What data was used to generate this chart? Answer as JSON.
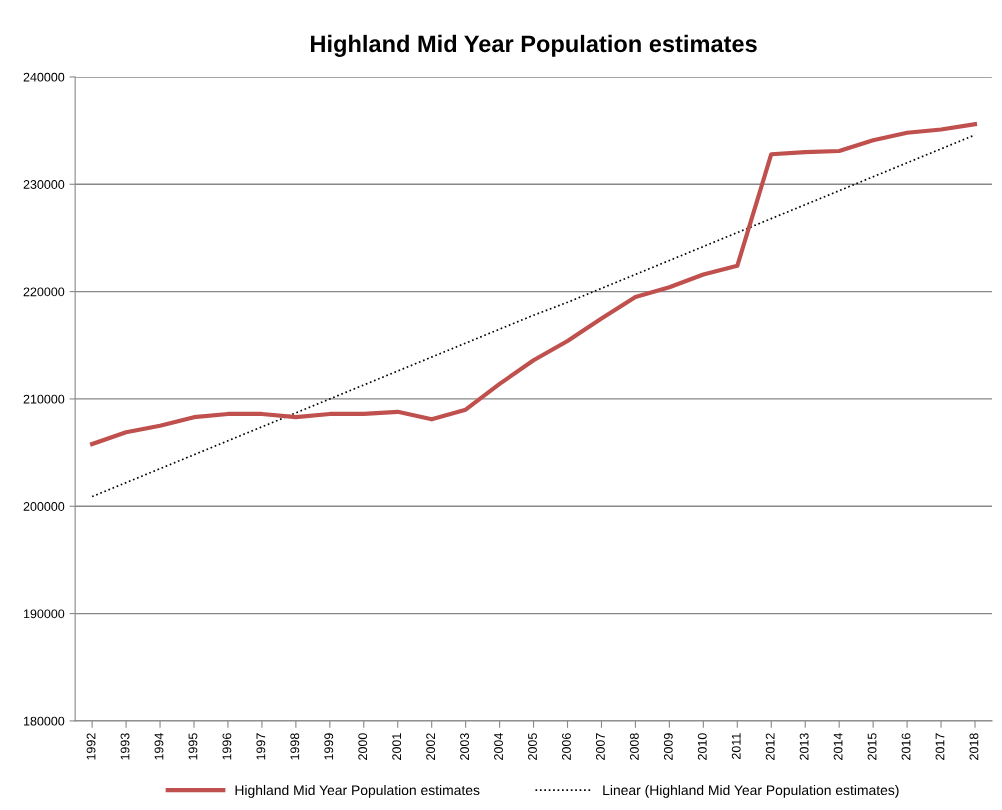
{
  "chart_data": {
    "type": "line",
    "title": "Highland Mid Year Population estimates",
    "categories": [
      "1992",
      "1993",
      "1994",
      "1995",
      "1996",
      "1997",
      "1998",
      "1999",
      "2000",
      "2001",
      "2002",
      "2003",
      "2004",
      "2005",
      "2006",
      "2007",
      "2008",
      "2009",
      "2010",
      "2011",
      "2012",
      "2013",
      "2014",
      "2015",
      "2016",
      "2017",
      "2018"
    ],
    "series": [
      {
        "name": "Highland Mid Year Population estimates",
        "color": "#c0504d",
        "line_style": "solid",
        "values": [
          205800,
          206900,
          207500,
          208300,
          208600,
          208600,
          208300,
          208600,
          208600,
          208800,
          208100,
          209000,
          211400,
          213600,
          215400,
          217500,
          219500,
          220400,
          221600,
          222400,
          232800,
          233000,
          233100,
          234100,
          234800,
          235100,
          235600
        ]
      },
      {
        "name": "Linear (Highland Mid Year Population estimates)",
        "type": "line",
        "color": "#000000",
        "line_style": "dotted",
        "values": [
          200900,
          202200,
          203500,
          204800,
          206100,
          207400,
          208700,
          210000,
          211300,
          212600,
          213900,
          215200,
          216500,
          217800,
          219000,
          220300,
          221600,
          222900,
          224200,
          225500,
          226800,
          228100,
          229400,
          230700,
          232000,
          233300,
          234600
        ]
      }
    ],
    "ylim": [
      180000,
      240000
    ],
    "yticks": [
      180000,
      190000,
      200000,
      210000,
      220000,
      230000,
      240000
    ],
    "grid": "y",
    "legend": "bottom"
  }
}
